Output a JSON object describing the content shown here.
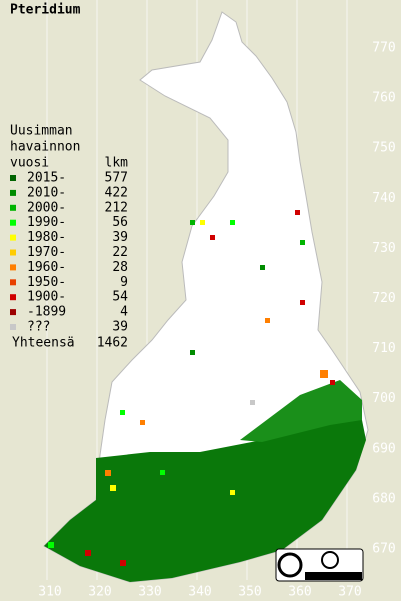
{
  "title": "Pteridium",
  "legend": {
    "heading": [
      "Uusimman",
      "havainnon",
      "vuosi"
    ],
    "count_heading": "lkm",
    "rows": [
      {
        "label": "2015-",
        "count": 577,
        "color": "#006400"
      },
      {
        "label": "2010-",
        "count": 422,
        "color": "#008c00"
      },
      {
        "label": "2000-",
        "count": 212,
        "color": "#00b400"
      },
      {
        "label": "1990-",
        "count": 56,
        "color": "#00ff00"
      },
      {
        "label": "1980-",
        "count": 39,
        "color": "#ffff00"
      },
      {
        "label": "1970-",
        "count": 22,
        "color": "#ffcc00"
      },
      {
        "label": "1960-",
        "count": 28,
        "color": "#ff7f00"
      },
      {
        "label": "1950-",
        "count": 9,
        "color": "#e84000"
      },
      {
        "label": "1900-",
        "count": 54,
        "color": "#d00000"
      },
      {
        "label": "-1899",
        "count": 4,
        "color": "#9c0000"
      },
      {
        "label": "???",
        "count": 39,
        "color": "#c8c8c8"
      }
    ]
  },
  "total": {
    "label": "Yhteensä",
    "value": 1462
  },
  "x_labels": [
    "310",
    "320",
    "330",
    "340",
    "350",
    "360",
    "370"
  ],
  "y_labels": [
    "670",
    "680",
    "690",
    "700",
    "710",
    "720",
    "730",
    "740",
    "750",
    "760",
    "770"
  ]
}
